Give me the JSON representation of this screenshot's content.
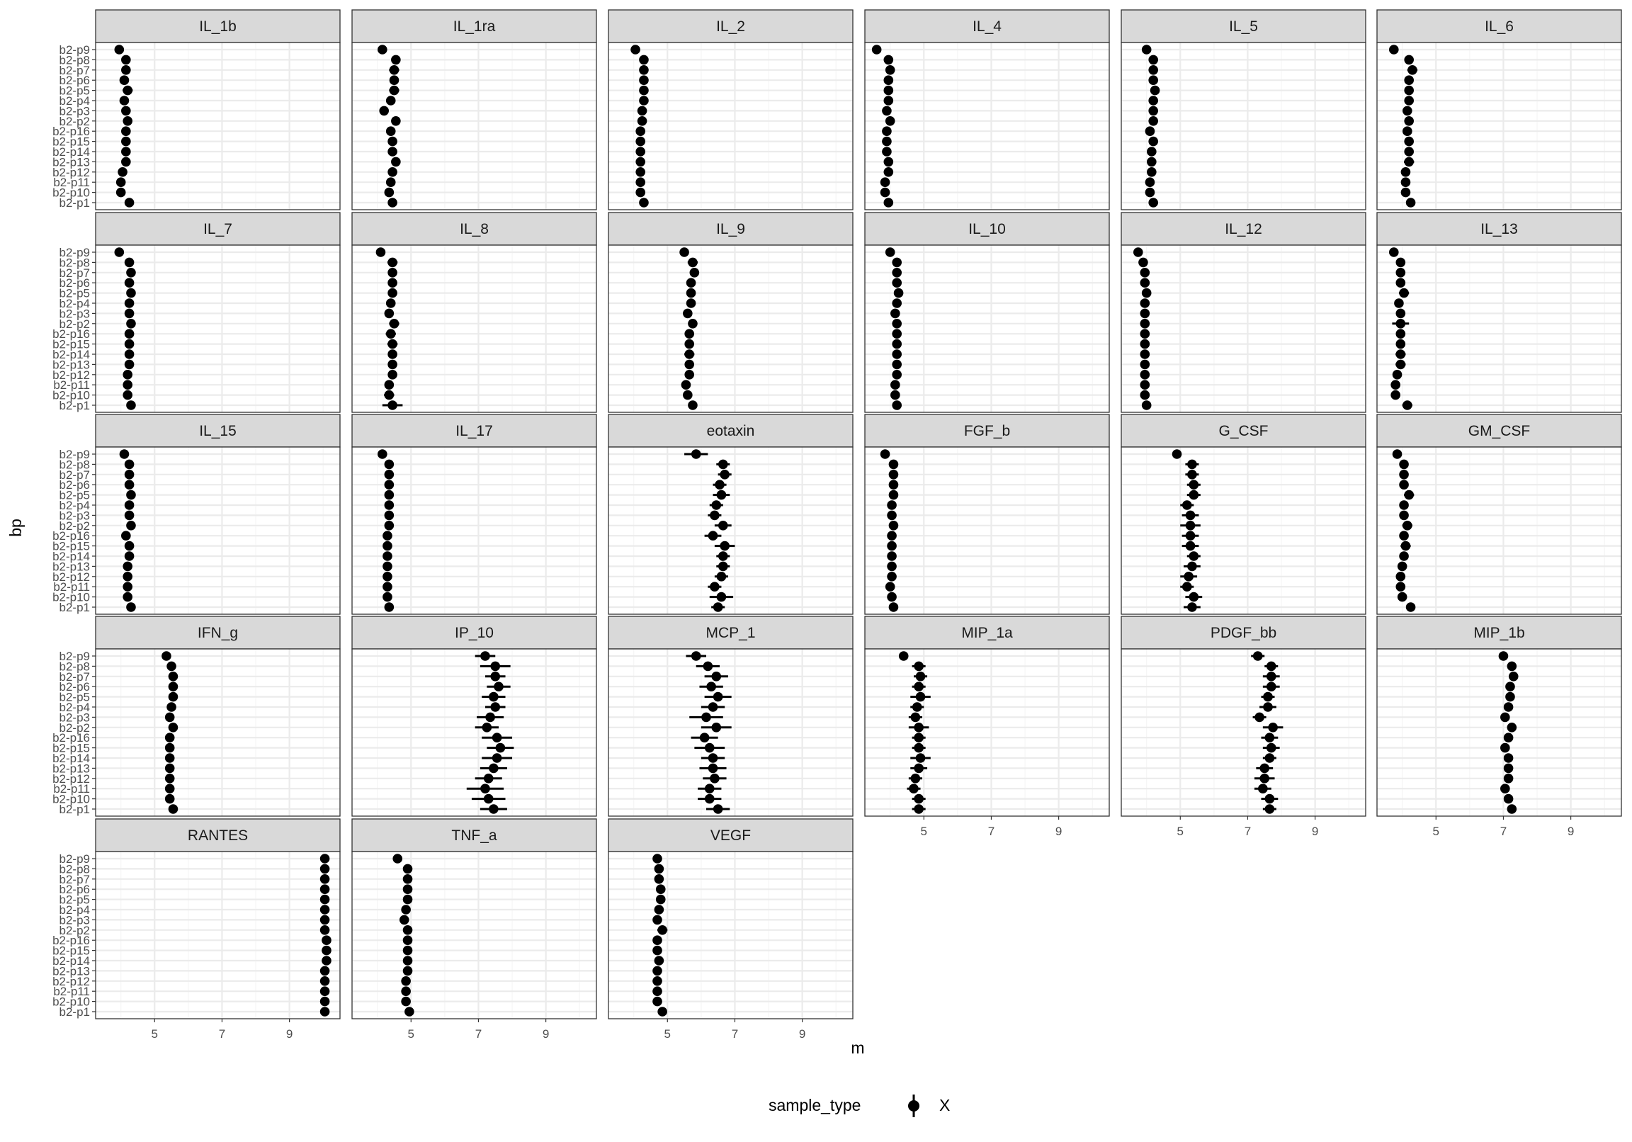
{
  "chart_data": {
    "type": "scatter",
    "subtype": "faceted point-range plot",
    "xlabel": "m",
    "ylabel": "bp",
    "x_ticks": [
      5,
      7,
      9
    ],
    "xlim": [
      3.25,
      10.5
    ],
    "y_categories": [
      "b2-p9",
      "b2-p8",
      "b2-p7",
      "b2-p6",
      "b2-p5",
      "b2-p4",
      "b2-p3",
      "b2-p2",
      "b2-p16",
      "b2-p15",
      "b2-p14",
      "b2-p13",
      "b2-p12",
      "b2-p11",
      "b2-p10",
      "b2-p1"
    ],
    "grid": true,
    "legend": {
      "title": "sample_type",
      "position": "bottom",
      "entries": [
        "X"
      ]
    },
    "panels": [
      {
        "name": "IL_1b",
        "values": [
          3.95,
          4.15,
          4.15,
          4.1,
          4.2,
          4.1,
          4.15,
          4.2,
          4.15,
          4.15,
          4.15,
          4.15,
          4.05,
          4.0,
          4.0,
          4.25
        ],
        "err": [
          0.05,
          0.1,
          0.1,
          0.1,
          0.15,
          0.1,
          0.1,
          0.1,
          0.1,
          0.1,
          0.1,
          0.1,
          0.1,
          0.1,
          0.1,
          0.1
        ]
      },
      {
        "name": "IL_1ra",
        "values": [
          4.15,
          4.55,
          4.5,
          4.5,
          4.5,
          4.4,
          4.2,
          4.55,
          4.4,
          4.45,
          4.45,
          4.55,
          4.45,
          4.4,
          4.35,
          4.45
        ],
        "err": [
          0.05,
          0.1,
          0.15,
          0.1,
          0.15,
          0.1,
          0.05,
          0.1,
          0.1,
          0.1,
          0.1,
          0.1,
          0.1,
          0.1,
          0.1,
          0.1
        ]
      },
      {
        "name": "IL_2",
        "values": [
          4.05,
          4.3,
          4.3,
          4.3,
          4.3,
          4.3,
          4.25,
          4.25,
          4.2,
          4.2,
          4.2,
          4.2,
          4.2,
          4.2,
          4.2,
          4.3
        ],
        "err": [
          0.05,
          0.1,
          0.1,
          0.1,
          0.1,
          0.1,
          0.1,
          0.1,
          0.1,
          0.1,
          0.1,
          0.1,
          0.1,
          0.1,
          0.1,
          0.1
        ]
      },
      {
        "name": "IL_4",
        "values": [
          3.6,
          3.95,
          4.0,
          3.95,
          3.95,
          3.95,
          3.9,
          4.0,
          3.9,
          3.9,
          3.9,
          3.95,
          3.95,
          3.85,
          3.85,
          3.95
        ],
        "err": [
          0.05,
          0.1,
          0.1,
          0.1,
          0.1,
          0.1,
          0.1,
          0.1,
          0.1,
          0.1,
          0.1,
          0.1,
          0.1,
          0.1,
          0.1,
          0.1
        ]
      },
      {
        "name": "IL_5",
        "values": [
          4.0,
          4.2,
          4.2,
          4.2,
          4.25,
          4.2,
          4.2,
          4.2,
          4.1,
          4.2,
          4.15,
          4.15,
          4.15,
          4.1,
          4.1,
          4.2
        ],
        "err": [
          0.05,
          0.1,
          0.1,
          0.1,
          0.1,
          0.1,
          0.1,
          0.1,
          0.1,
          0.1,
          0.1,
          0.1,
          0.1,
          0.1,
          0.1,
          0.1
        ]
      },
      {
        "name": "IL_6",
        "values": [
          3.75,
          4.2,
          4.3,
          4.2,
          4.2,
          4.2,
          4.15,
          4.2,
          4.15,
          4.2,
          4.2,
          4.2,
          4.1,
          4.1,
          4.1,
          4.25
        ],
        "err": [
          0.05,
          0.1,
          0.15,
          0.1,
          0.1,
          0.1,
          0.1,
          0.1,
          0.1,
          0.1,
          0.1,
          0.15,
          0.1,
          0.1,
          0.1,
          0.1
        ]
      },
      {
        "name": "IL_7",
        "values": [
          3.95,
          4.25,
          4.3,
          4.25,
          4.3,
          4.25,
          4.25,
          4.3,
          4.25,
          4.25,
          4.25,
          4.25,
          4.2,
          4.2,
          4.2,
          4.3
        ],
        "err": [
          0.05,
          0.1,
          0.1,
          0.1,
          0.1,
          0.1,
          0.1,
          0.1,
          0.1,
          0.1,
          0.1,
          0.1,
          0.1,
          0.1,
          0.1,
          0.1
        ]
      },
      {
        "name": "IL_8",
        "values": [
          4.1,
          4.45,
          4.45,
          4.45,
          4.45,
          4.4,
          4.35,
          4.5,
          4.4,
          4.45,
          4.45,
          4.45,
          4.45,
          4.35,
          4.35,
          4.45
        ],
        "err": [
          0.05,
          0.15,
          0.1,
          0.1,
          0.1,
          0.1,
          0.1,
          0.15,
          0.15,
          0.15,
          0.1,
          0.1,
          0.1,
          0.1,
          0.15,
          0.3
        ]
      },
      {
        "name": "IL_9",
        "values": [
          5.5,
          5.75,
          5.8,
          5.7,
          5.7,
          5.7,
          5.6,
          5.75,
          5.65,
          5.65,
          5.65,
          5.65,
          5.65,
          5.55,
          5.6,
          5.75
        ],
        "err": [
          0.05,
          0.15,
          0.1,
          0.1,
          0.1,
          0.1,
          0.1,
          0.1,
          0.1,
          0.1,
          0.15,
          0.1,
          0.1,
          0.1,
          0.1,
          0.1
        ]
      },
      {
        "name": "IL_10",
        "values": [
          4.0,
          4.2,
          4.2,
          4.2,
          4.25,
          4.2,
          4.15,
          4.2,
          4.2,
          4.2,
          4.2,
          4.2,
          4.2,
          4.15,
          4.15,
          4.2
        ],
        "err": [
          0.05,
          0.1,
          0.1,
          0.1,
          0.1,
          0.1,
          0.1,
          0.1,
          0.1,
          0.1,
          0.1,
          0.1,
          0.1,
          0.1,
          0.1,
          0.1
        ]
      },
      {
        "name": "IL_12",
        "values": [
          3.75,
          3.9,
          3.95,
          3.95,
          4.0,
          3.95,
          3.95,
          3.95,
          3.95,
          3.95,
          3.95,
          3.95,
          3.95,
          3.95,
          3.95,
          4.0
        ],
        "err": [
          0.05,
          0.1,
          0.1,
          0.1,
          0.1,
          0.1,
          0.1,
          0.1,
          0.1,
          0.1,
          0.1,
          0.1,
          0.1,
          0.1,
          0.1,
          0.1
        ]
      },
      {
        "name": "IL_13",
        "values": [
          3.75,
          3.95,
          3.95,
          3.95,
          4.05,
          3.9,
          3.95,
          3.95,
          3.95,
          3.95,
          3.95,
          3.95,
          3.85,
          3.8,
          3.8,
          4.15
        ],
        "err": [
          0.05,
          0.1,
          0.1,
          0.1,
          0.15,
          0.1,
          0.1,
          0.25,
          0.1,
          0.1,
          0.15,
          0.15,
          0.1,
          0.1,
          0.1,
          0.15
        ]
      },
      {
        "name": "IL_15",
        "values": [
          4.1,
          4.25,
          4.25,
          4.25,
          4.3,
          4.25,
          4.25,
          4.3,
          4.15,
          4.25,
          4.25,
          4.2,
          4.2,
          4.2,
          4.2,
          4.3
        ],
        "err": [
          0.05,
          0.1,
          0.1,
          0.1,
          0.1,
          0.1,
          0.1,
          0.1,
          0.1,
          0.1,
          0.1,
          0.1,
          0.1,
          0.1,
          0.1,
          0.1
        ]
      },
      {
        "name": "IL_17",
        "values": [
          4.15,
          4.35,
          4.35,
          4.35,
          4.35,
          4.35,
          4.35,
          4.35,
          4.3,
          4.3,
          4.3,
          4.3,
          4.3,
          4.3,
          4.3,
          4.35
        ],
        "err": [
          0.05,
          0.1,
          0.1,
          0.1,
          0.1,
          0.1,
          0.1,
          0.1,
          0.1,
          0.1,
          0.1,
          0.1,
          0.1,
          0.1,
          0.1,
          0.1
        ]
      },
      {
        "name": "eotaxin",
        "values": [
          5.85,
          6.65,
          6.7,
          6.55,
          6.6,
          6.45,
          6.4,
          6.65,
          6.35,
          6.7,
          6.65,
          6.65,
          6.6,
          6.4,
          6.6,
          6.5
        ],
        "err": [
          0.35,
          0.2,
          0.2,
          0.2,
          0.25,
          0.2,
          0.2,
          0.25,
          0.25,
          0.3,
          0.2,
          0.2,
          0.2,
          0.2,
          0.35,
          0.2
        ]
      },
      {
        "name": "FGF_b",
        "values": [
          3.85,
          4.1,
          4.1,
          4.1,
          4.1,
          4.05,
          4.05,
          4.1,
          4.05,
          4.05,
          4.05,
          4.05,
          4.05,
          4.0,
          4.05,
          4.1
        ],
        "err": [
          0.05,
          0.1,
          0.1,
          0.1,
          0.1,
          0.1,
          0.1,
          0.1,
          0.1,
          0.1,
          0.1,
          0.1,
          0.1,
          0.1,
          0.1,
          0.1
        ]
      },
      {
        "name": "G_CSF",
        "values": [
          4.9,
          5.35,
          5.35,
          5.4,
          5.4,
          5.2,
          5.3,
          5.3,
          5.3,
          5.3,
          5.4,
          5.35,
          5.25,
          5.2,
          5.4,
          5.35
        ],
        "err": [
          0.05,
          0.2,
          0.2,
          0.2,
          0.2,
          0.2,
          0.25,
          0.3,
          0.25,
          0.25,
          0.2,
          0.25,
          0.25,
          0.2,
          0.25,
          0.25
        ]
      },
      {
        "name": "GM_CSF",
        "values": [
          3.85,
          4.05,
          4.05,
          4.05,
          4.2,
          4.05,
          4.05,
          4.15,
          4.05,
          4.1,
          4.05,
          4.0,
          3.95,
          3.95,
          4.0,
          4.25
        ],
        "err": [
          0.05,
          0.1,
          0.1,
          0.1,
          0.15,
          0.1,
          0.1,
          0.15,
          0.1,
          0.15,
          0.1,
          0.1,
          0.1,
          0.1,
          0.1,
          0.1
        ]
      },
      {
        "name": "IFN_g",
        "values": [
          5.35,
          5.5,
          5.55,
          5.55,
          5.55,
          5.5,
          5.45,
          5.55,
          5.45,
          5.45,
          5.45,
          5.45,
          5.45,
          5.45,
          5.45,
          5.55
        ],
        "err": [
          0.05,
          0.1,
          0.1,
          0.1,
          0.1,
          0.1,
          0.1,
          0.1,
          0.1,
          0.1,
          0.1,
          0.1,
          0.1,
          0.1,
          0.1,
          0.1
        ]
      },
      {
        "name": "IP_10",
        "values": [
          7.2,
          7.5,
          7.5,
          7.6,
          7.45,
          7.5,
          7.35,
          7.25,
          7.55,
          7.65,
          7.55,
          7.45,
          7.3,
          7.2,
          7.3,
          7.45
        ],
        "err": [
          0.3,
          0.45,
          0.3,
          0.35,
          0.35,
          0.3,
          0.4,
          0.35,
          0.45,
          0.4,
          0.45,
          0.4,
          0.4,
          0.55,
          0.5,
          0.4
        ]
      },
      {
        "name": "MCP_1",
        "values": [
          5.85,
          6.2,
          6.45,
          6.3,
          6.5,
          6.35,
          6.15,
          6.45,
          6.1,
          6.25,
          6.35,
          6.35,
          6.4,
          6.25,
          6.25,
          6.5
        ],
        "err": [
          0.3,
          0.35,
          0.35,
          0.35,
          0.4,
          0.35,
          0.5,
          0.45,
          0.4,
          0.45,
          0.35,
          0.4,
          0.35,
          0.35,
          0.35,
          0.35
        ]
      },
      {
        "name": "MIP_1a",
        "values": [
          4.4,
          4.85,
          4.9,
          4.85,
          4.9,
          4.8,
          4.75,
          4.85,
          4.85,
          4.85,
          4.9,
          4.85,
          4.75,
          4.7,
          4.85,
          4.85
        ],
        "err": [
          0.05,
          0.2,
          0.2,
          0.2,
          0.3,
          0.2,
          0.2,
          0.3,
          0.2,
          0.2,
          0.3,
          0.25,
          0.2,
          0.2,
          0.2,
          0.2
        ]
      },
      {
        "name": "PDGF_bb",
        "values": [
          7.3,
          7.7,
          7.7,
          7.7,
          7.6,
          7.6,
          7.35,
          7.75,
          7.65,
          7.7,
          7.65,
          7.5,
          7.5,
          7.45,
          7.65,
          7.65
        ],
        "err": [
          0.2,
          0.2,
          0.25,
          0.25,
          0.2,
          0.25,
          0.2,
          0.3,
          0.25,
          0.25,
          0.2,
          0.25,
          0.3,
          0.25,
          0.25,
          0.2
        ]
      },
      {
        "name": "MIP_1b",
        "values": [
          7.0,
          7.25,
          7.3,
          7.2,
          7.2,
          7.15,
          7.05,
          7.25,
          7.15,
          7.05,
          7.15,
          7.15,
          7.15,
          7.05,
          7.15,
          7.25
        ],
        "err": [
          0.05,
          0.1,
          0.1,
          0.1,
          0.1,
          0.1,
          0.1,
          0.1,
          0.1,
          0.1,
          0.1,
          0.1,
          0.1,
          0.1,
          0.1,
          0.1
        ]
      },
      {
        "name": "RANTES",
        "values": [
          10.05,
          10.05,
          10.05,
          10.05,
          10.05,
          10.05,
          10.05,
          10.05,
          10.1,
          10.1,
          10.1,
          10.05,
          10.05,
          10.05,
          10.05,
          10.05
        ],
        "err": [
          0.05,
          0.1,
          0.1,
          0.1,
          0.1,
          0.1,
          0.1,
          0.1,
          0.1,
          0.1,
          0.1,
          0.1,
          0.1,
          0.1,
          0.1,
          0.1
        ]
      },
      {
        "name": "TNF_a",
        "values": [
          4.6,
          4.9,
          4.9,
          4.9,
          4.9,
          4.85,
          4.8,
          4.9,
          4.9,
          4.9,
          4.9,
          4.9,
          4.85,
          4.85,
          4.85,
          4.95
        ],
        "err": [
          0.05,
          0.1,
          0.1,
          0.1,
          0.1,
          0.1,
          0.1,
          0.1,
          0.1,
          0.1,
          0.1,
          0.1,
          0.1,
          0.1,
          0.1,
          0.1
        ]
      },
      {
        "name": "VEGF",
        "values": [
          4.7,
          4.75,
          4.75,
          4.8,
          4.8,
          4.75,
          4.7,
          4.85,
          4.7,
          4.7,
          4.75,
          4.7,
          4.7,
          4.7,
          4.7,
          4.85
        ],
        "err": [
          0.05,
          0.1,
          0.1,
          0.1,
          0.1,
          0.1,
          0.1,
          0.15,
          0.1,
          0.1,
          0.1,
          0.1,
          0.1,
          0.1,
          0.1,
          0.1
        ]
      }
    ]
  },
  "colors": {
    "strip_fill": "#d9d9d9",
    "border": "#333333",
    "grid_major": "#ebebeb",
    "grid_minor": "#f5f5f5",
    "point": "#000000"
  }
}
